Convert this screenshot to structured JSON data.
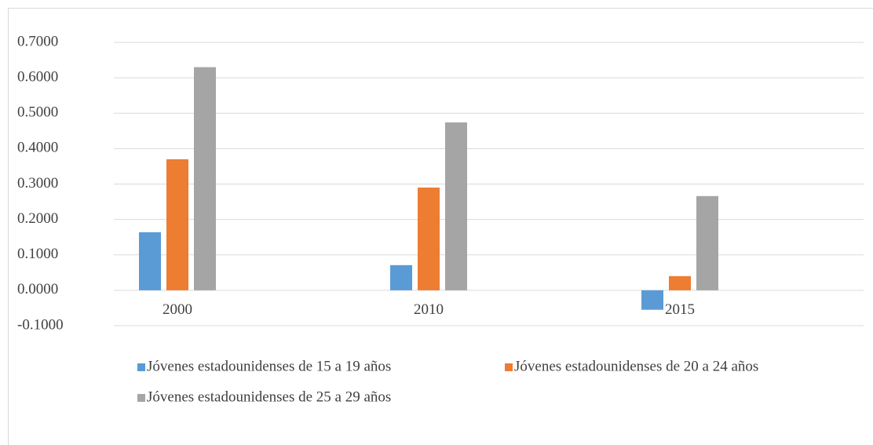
{
  "chart_data": {
    "type": "bar",
    "categories": [
      "2000",
      "2010",
      "2015"
    ],
    "series": [
      {
        "name": "Jóvenes estadounidenses de 15 a 19 años",
        "color": "#5b9bd5",
        "values": [
          0.164,
          0.071,
          -0.055
        ]
      },
      {
        "name": "Jóvenes estadounidenses de 20 a 24 años",
        "color": "#ed7d31",
        "values": [
          0.37,
          0.29,
          0.04
        ]
      },
      {
        "name": "Jóvenes estadounidenses de 25 a 29 años",
        "color": "#a5a5a5",
        "values": [
          0.63,
          0.474,
          0.266
        ]
      }
    ],
    "ylim": [
      -0.1,
      0.7
    ],
    "yticks": [
      {
        "value": -0.1,
        "label": "-0.1000"
      },
      {
        "value": 0,
        "label": "0.0000"
      },
      {
        "value": 0.1,
        "label": "0.1000"
      },
      {
        "value": 0.2,
        "label": "0.2000"
      },
      {
        "value": 0.3,
        "label": "0.3000"
      },
      {
        "value": 0.4,
        "label": "0.4000"
      },
      {
        "value": 0.5,
        "label": "0.5000"
      },
      {
        "value": 0.6,
        "label": "0.6000"
      },
      {
        "value": 0.7,
        "label": "0.7000"
      }
    ],
    "grid": true,
    "legend": "bottom"
  }
}
